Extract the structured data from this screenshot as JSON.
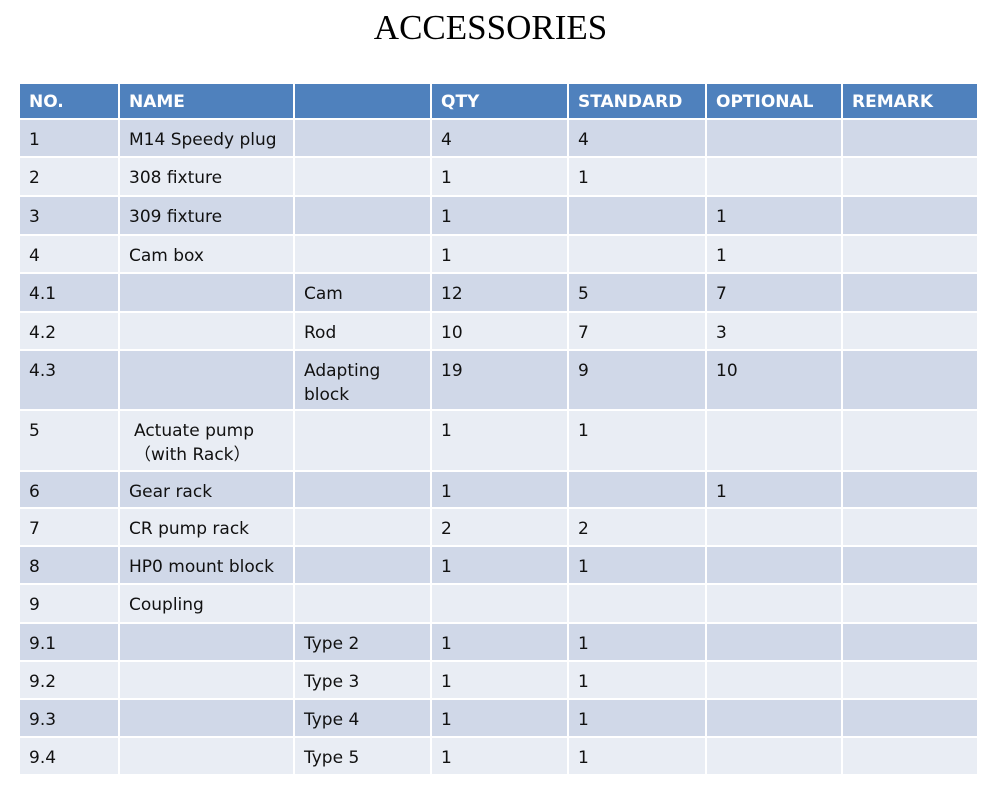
{
  "title": "ACCESSORIES",
  "colors": {
    "header": "#4f81bd",
    "row_odd": "#d0d8e8",
    "row_even": "#e9edf4"
  },
  "headers": [
    "NO.",
    "NAME",
    "",
    "QTY",
    "STANDARD",
    "OPTIONAL",
    "REMARK"
  ],
  "rows": [
    [
      "1",
      "M14 Speedy plug",
      "",
      "4",
      "4",
      "",
      ""
    ],
    [
      "2",
      "308 fixture",
      "",
      "1",
      "1",
      "",
      ""
    ],
    [
      "3",
      "309 fixture",
      "",
      "1",
      "",
      "1",
      ""
    ],
    [
      "4",
      "Cam box",
      "",
      "1",
      "",
      "1",
      ""
    ],
    [
      "4.1",
      "",
      "Cam",
      "12",
      "5",
      "7",
      ""
    ],
    [
      "4.2",
      "",
      "Rod",
      "10",
      "7",
      "3",
      ""
    ],
    [
      "4.3",
      "",
      "Adapting block",
      "19",
      "9",
      "10",
      ""
    ],
    [
      "5",
      "Actuate pump （with Rack）",
      "",
      "1",
      "1",
      "",
      ""
    ],
    [
      "6",
      "Gear rack",
      "",
      "1",
      "",
      "1",
      ""
    ],
    [
      "7",
      "CR pump rack",
      "",
      "2",
      "2",
      "",
      ""
    ],
    [
      "8",
      "HP0 mount block",
      "",
      "1",
      "1",
      "",
      ""
    ],
    [
      "9",
      "Coupling",
      "",
      "",
      "",
      "",
      ""
    ],
    [
      "9.1",
      "",
      "Type 2",
      "1",
      "1",
      "",
      ""
    ],
    [
      "9.2",
      "",
      "Type 3",
      "1",
      "1",
      "",
      ""
    ],
    [
      "9.3",
      "",
      "Type 4",
      "1",
      "1",
      "",
      ""
    ],
    [
      "9.4",
      "",
      "Type 5",
      "1",
      "1",
      "",
      ""
    ]
  ]
}
